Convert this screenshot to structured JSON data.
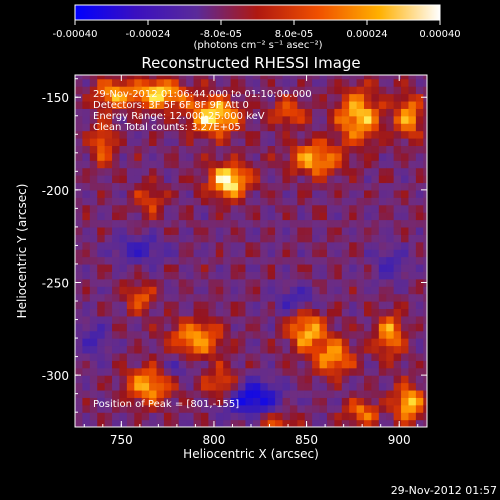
{
  "chart_data": {
    "type": "heatmap",
    "title": "Reconstructed RHESSI Image",
    "xlabel": "Heliocentric X (arcsec)",
    "ylabel": "Heliocentric Y (arcsec)",
    "xlim": [
      725,
      915
    ],
    "ylim": [
      -328,
      -138
    ],
    "x_ticks": [
      750,
      800,
      850,
      900
    ],
    "y_ticks": [
      -150,
      -200,
      -250,
      -300
    ],
    "colorbar": {
      "range": [
        -0.0004,
        0.0004
      ],
      "ticks": [
        "-0.00040",
        "-0.00024",
        "-8.0e-05",
        "8.0e-05",
        "0.00024",
        "0.00040"
      ],
      "tick_values": [
        -0.0004,
        -0.00024,
        -8e-05,
        8e-05,
        0.00024,
        0.0004
      ],
      "unit_label": "(photons cm⁻² s⁻¹ asec⁻²)",
      "colors": [
        "#0000ff",
        "#3a10c0",
        "#5a2a9a",
        "#b01810",
        "#f05000",
        "#ffb000",
        "#ffffff"
      ]
    },
    "annotations": [
      "29-Nov-2012 01:06:44.000 to 01:10:00.000",
      "Detectors: 3F 5F 6F 8F 9F  Att 0",
      "Energy Range: 12.000-25.000 keV",
      "Clean     Total counts: 3.27E+05"
    ],
    "peak_label": "Position of Peak = [801,-155]",
    "peak": [
      801,
      -155
    ],
    "grid": false,
    "hotspots": [
      {
        "x": 808,
        "y": -195,
        "v": 1.0,
        "sx": 11,
        "sy": 9
      },
      {
        "x": 800,
        "y": -160,
        "v": 0.9,
        "sx": 14,
        "sy": 10
      },
      {
        "x": 770,
        "y": -148,
        "v": 0.85,
        "sx": 15,
        "sy": 8
      },
      {
        "x": 745,
        "y": -148,
        "v": 0.65,
        "sx": 10,
        "sy": 8
      },
      {
        "x": 740,
        "y": -175,
        "v": 0.55,
        "sx": 7,
        "sy": 12
      },
      {
        "x": 855,
        "y": -183,
        "v": 0.75,
        "sx": 14,
        "sy": 9
      },
      {
        "x": 878,
        "y": -160,
        "v": 0.8,
        "sx": 12,
        "sy": 14
      },
      {
        "x": 905,
        "y": -160,
        "v": 0.7,
        "sx": 7,
        "sy": 12
      },
      {
        "x": 840,
        "y": -158,
        "v": 0.55,
        "sx": 9,
        "sy": 7
      },
      {
        "x": 765,
        "y": -205,
        "v": 0.45,
        "sx": 8,
        "sy": 8
      },
      {
        "x": 790,
        "y": -280,
        "v": 0.7,
        "sx": 14,
        "sy": 10
      },
      {
        "x": 765,
        "y": -305,
        "v": 0.75,
        "sx": 12,
        "sy": 10
      },
      {
        "x": 805,
        "y": -305,
        "v": 0.6,
        "sx": 10,
        "sy": 9
      },
      {
        "x": 850,
        "y": -275,
        "v": 0.75,
        "sx": 10,
        "sy": 12
      },
      {
        "x": 865,
        "y": -290,
        "v": 0.7,
        "sx": 10,
        "sy": 10
      },
      {
        "x": 895,
        "y": -278,
        "v": 0.65,
        "sx": 8,
        "sy": 12
      },
      {
        "x": 905,
        "y": -315,
        "v": 0.8,
        "sx": 8,
        "sy": 10
      },
      {
        "x": 880,
        "y": -320,
        "v": 0.6,
        "sx": 9,
        "sy": 7
      },
      {
        "x": 760,
        "y": -258,
        "v": 0.5,
        "sx": 8,
        "sy": 8
      },
      {
        "x": 835,
        "y": -325,
        "v": 0.45,
        "sx": 10,
        "sy": 6
      },
      {
        "x": 820,
        "y": -312,
        "v": -0.9,
        "sx": 15,
        "sy": 9
      },
      {
        "x": 760,
        "y": -232,
        "v": -0.45,
        "sx": 15,
        "sy": 7
      },
      {
        "x": 845,
        "y": -260,
        "v": -0.45,
        "sx": 12,
        "sy": 8
      },
      {
        "x": 735,
        "y": -280,
        "v": -0.4,
        "sx": 8,
        "sy": 9
      },
      {
        "x": 895,
        "y": -240,
        "v": -0.35,
        "sx": 10,
        "sy": 10
      },
      {
        "x": 780,
        "y": -295,
        "v": -0.4,
        "sx": 8,
        "sy": 6
      }
    ]
  },
  "footer": {
    "timestamp": "29-Nov-2012 01:57"
  }
}
